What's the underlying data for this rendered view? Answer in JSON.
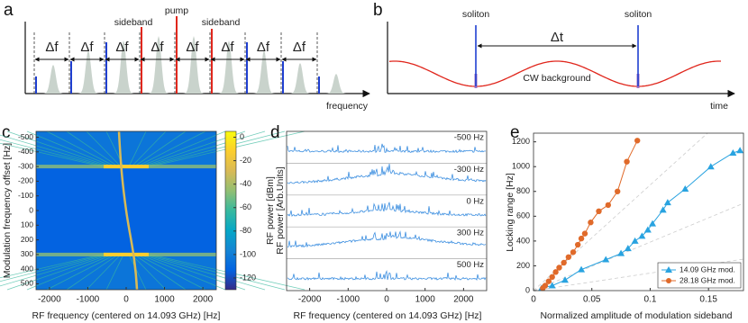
{
  "chart_data": [
    {
      "type": "comb-schematic",
      "label": "a",
      "spacing_labels": [
        "Δf",
        "Δf",
        "Δf",
        "Δf",
        "Δf",
        "Δf",
        "Δf",
        "Δf"
      ],
      "annotations": [
        "sideband",
        "pump",
        "sideband"
      ],
      "xlabel": "frequency"
    },
    {
      "type": "soliton-schematic",
      "label": "b",
      "annotations": [
        "soliton",
        "soliton",
        "Δt",
        "CW background"
      ],
      "xlabel": "time"
    },
    {
      "type": "heatmap",
      "label": "c",
      "xlabel": "RF frequency (centered on 14.093 GHz) [Hz]",
      "ylabel": "Modulation frequency offset [Hz]",
      "xlim": [
        -2350,
        2350
      ],
      "xticks": [
        -2000,
        -1000,
        0,
        1000,
        2000
      ],
      "ylim": [
        -540,
        540
      ],
      "yticks": [
        -500,
        -400,
        -300,
        -200,
        -100,
        0,
        100,
        200,
        300,
        400,
        500
      ],
      "y_reversed": true,
      "colorbar": {
        "label": "RF power [dBm]",
        "lim": [
          -130,
          5
        ],
        "ticks": [
          0,
          -20,
          -40,
          -60,
          -80,
          -100,
          -120
        ],
        "colormap": [
          "#352a87",
          "#0363e1",
          "#1485d4",
          "#06a7c6",
          "#38b99e",
          "#92bf73",
          "#d9ba56",
          "#fcce2e",
          "#f9fb0e"
        ]
      }
    },
    {
      "type": "stacked-spectra",
      "label": "d",
      "xlabel": "RF frequency (centered on 14.093 GHz) [Hz]",
      "ylabel": "RF power [Arb.Units]",
      "xlim": [
        -2600,
        2600
      ],
      "xticks": [
        -2000,
        -1000,
        0,
        1000,
        2000
      ],
      "color": "#3d8fe0",
      "traces": [
        "-500 Hz",
        "-300 Hz",
        "0 Hz",
        "300 Hz",
        "500 Hz"
      ]
    },
    {
      "type": "scatter-line",
      "label": "e",
      "xlabel": "Normalized amplitude of modulation sideband",
      "ylabel": "Locking range [Hz]",
      "xlim": [
        0,
        0.18
      ],
      "xticks": [
        0,
        0.05,
        0.1,
        0.15
      ],
      "ylim": [
        0,
        1270
      ],
      "yticks": [
        0,
        200,
        400,
        600,
        800,
        1000,
        1200
      ],
      "legend": "lower right",
      "series": [
        {
          "name": "14.09 GHz mod.",
          "color": "#29a3e0",
          "marker": "triangle",
          "x": [
            0.007,
            0.016,
            0.027,
            0.041,
            0.062,
            0.075,
            0.081,
            0.087,
            0.093,
            0.098,
            0.102,
            0.111,
            0.115,
            0.13,
            0.152,
            0.171,
            0.177
          ],
          "values": [
            20,
            40,
            85,
            170,
            250,
            300,
            340,
            400,
            440,
            490,
            540,
            650,
            710,
            820,
            1000,
            1110,
            1130
          ]
        },
        {
          "name": "28.18 GHz mod.",
          "color": "#e06a2a",
          "marker": "circle",
          "x": [
            0.008,
            0.01,
            0.013,
            0.016,
            0.019,
            0.022,
            0.026,
            0.03,
            0.034,
            0.038,
            0.041,
            0.044,
            0.049,
            0.056,
            0.064,
            0.072,
            0.08,
            0.089
          ],
          "values": [
            20,
            40,
            75,
            110,
            150,
            185,
            225,
            270,
            310,
            370,
            420,
            460,
            550,
            640,
            690,
            800,
            1040,
            1210
          ]
        }
      ]
    }
  ]
}
